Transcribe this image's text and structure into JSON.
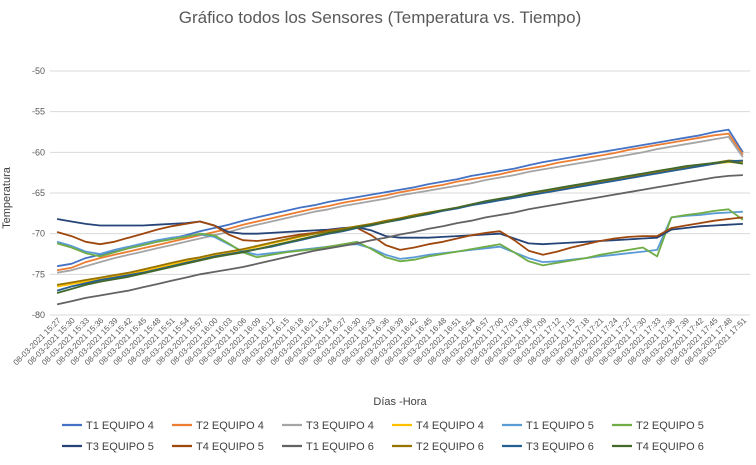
{
  "chart_data": {
    "type": "line",
    "title": "Gráfico todos los Sensores (Temperatura vs. Tiempo)",
    "xlabel": "Días -Hora",
    "ylabel": "Temperatura",
    "ylim": [
      -80,
      -50
    ],
    "yticks": [
      -50,
      -55,
      -60,
      -65,
      -70,
      -75,
      -80
    ],
    "grid": true,
    "legend_position": "bottom",
    "categories": [
      "08-03-2021 15:27",
      "08-03-2021 15:30",
      "08-03-2021 15:33",
      "08-03-2021 15:36",
      "08-03-2021 15:39",
      "08-03-2021 15:42",
      "08-03-2021 15:45",
      "08-03-2021 15:48",
      "08-03-2021 15:51",
      "08-03-2021 15:54",
      "08-03-2021 15:57",
      "08-03-2021 16:00",
      "08-03-2021 16:03",
      "08-03-2021 16:06",
      "08-03-2021 16:09",
      "08-03-2021 16:12",
      "08-03-2021 16:15",
      "08-03-2021 16:18",
      "08-03-2021 16:21",
      "08-03-2021 16:24",
      "08-03-2021 16:27",
      "08-03-2021 16:30",
      "08-03-2021 16:33",
      "08-03-2021 16:36",
      "08-03-2021 16:39",
      "08-03-2021 16:42",
      "08-03-2021 16:45",
      "08-03-2021 16:48",
      "08-03-2021 16:51",
      "08-03-2021 16:54",
      "08-03-2021 16:57",
      "08-03-2021 17:00",
      "08-03-2021 17:03",
      "08-03-2021 17:06",
      "08-03-2021 17:09",
      "08-03-2021 17:12",
      "08-03-2021 17:15",
      "08-03-2021 17:18",
      "08-03-2021 17:21",
      "08-03-2021 17:24",
      "08-03-2021 17:27",
      "08-03-2021 17:30",
      "08-03-2021 17:33",
      "08-03-2021 17:36",
      "08-03-2021 17:39",
      "08-03-2021 17:42",
      "08-03-2021 17:45",
      "08-03-2021 17:48",
      "08-03-2021 17:51"
    ],
    "series": [
      {
        "name": "T1 EQUIPO 4",
        "color": "#4472c4",
        "values": [
          -74,
          -73.7,
          -73,
          -72.6,
          -72.2,
          -71.8,
          -71.4,
          -71,
          -70.6,
          -70.2,
          -69.7,
          -69.3,
          -68.9,
          -68.4,
          -68,
          -67.6,
          -67.2,
          -66.8,
          -66.5,
          -66.1,
          -65.8,
          -65.5,
          -65.2,
          -64.9,
          -64.6,
          -64.3,
          -63.9,
          -63.6,
          -63.3,
          -62.9,
          -62.6,
          -62.3,
          -62,
          -61.6,
          -61.2,
          -60.9,
          -60.6,
          -60.3,
          -60,
          -59.7,
          -59.4,
          -59.1,
          -58.8,
          -58.5,
          -58.2,
          -57.9,
          -57.5,
          -57.2,
          -60
        ]
      },
      {
        "name": "T2 EQUIPO 4",
        "color": "#ed7d31",
        "values": [
          -74.5,
          -74.2,
          -73.5,
          -73,
          -72.6,
          -72.2,
          -71.8,
          -71.4,
          -71,
          -70.6,
          -70.2,
          -69.8,
          -69.4,
          -68.9,
          -68.5,
          -68.1,
          -67.7,
          -67.3,
          -66.9,
          -66.6,
          -66.2,
          -65.9,
          -65.6,
          -65.3,
          -64.9,
          -64.6,
          -64.3,
          -64,
          -63.6,
          -63.3,
          -63,
          -62.7,
          -62.3,
          -62,
          -61.7,
          -61.3,
          -61,
          -60.7,
          -60.4,
          -60.1,
          -59.7,
          -59.4,
          -59.1,
          -58.8,
          -58.5,
          -58.2,
          -57.9,
          -57.7,
          -60.3
        ]
      },
      {
        "name": "T3 EQUIPO 4",
        "color": "#a5a5a5",
        "values": [
          -74.8,
          -74.5,
          -74,
          -73.5,
          -73,
          -72.6,
          -72.2,
          -71.8,
          -71.4,
          -71,
          -70.6,
          -70.2,
          -69.8,
          -69.3,
          -68.9,
          -68.5,
          -68.1,
          -67.7,
          -67.3,
          -67,
          -66.6,
          -66.3,
          -66,
          -65.7,
          -65.3,
          -65,
          -64.7,
          -64.4,
          -64.1,
          -63.8,
          -63.4,
          -63.1,
          -62.8,
          -62.4,
          -62.1,
          -61.8,
          -61.5,
          -61.2,
          -60.9,
          -60.6,
          -60.3,
          -60,
          -59.6,
          -59.3,
          -59,
          -58.7,
          -58.4,
          -58.1,
          -60.6
        ]
      },
      {
        "name": "T4 EQUIPO 4",
        "color": "#ffc000",
        "values": [
          -76.5,
          -76.2,
          -75.9,
          -75.6,
          -75.3,
          -75,
          -74.6,
          -74.2,
          -73.8,
          -73.4,
          -73,
          -72.6,
          -72.3,
          -72,
          -71.6,
          -71.2,
          -70.8,
          -70.4,
          -70,
          -69.7,
          -69.4,
          -69.1,
          -68.8,
          -68.5,
          -68.1,
          -67.8,
          -67.4,
          -67.1,
          -66.8,
          -66.5,
          -66.1,
          -65.8,
          -65.5,
          -65.2,
          -64.9,
          -64.6,
          -64.3,
          -64,
          -63.7,
          -63.4,
          -63.1,
          -62.8,
          -62.5,
          -62.2,
          -61.9,
          -61.6,
          -61.4,
          -61.2,
          -61.3
        ]
      },
      {
        "name": "T1 EQUIPO 5",
        "color": "#5b9bd5",
        "values": [
          -71,
          -71.5,
          -72.2,
          -72.5,
          -72,
          -71.6,
          -71.2,
          -70.8,
          -70.5,
          -70.3,
          -70.1,
          -70.4,
          -71.3,
          -72.2,
          -72.6,
          -72.4,
          -72.2,
          -72,
          -71.8,
          -71.6,
          -71.4,
          -71.3,
          -71.8,
          -72.6,
          -73.1,
          -72.9,
          -72.6,
          -72.4,
          -72.2,
          -72,
          -71.8,
          -71.6,
          -72.3,
          -73,
          -73.5,
          -73.4,
          -73.2,
          -73,
          -72.8,
          -72.6,
          -72.4,
          -72.2,
          -72,
          -68,
          -67.8,
          -67.7,
          -67.5,
          -67.4,
          -67.3
        ]
      },
      {
        "name": "T2 EQUIPO 5",
        "color": "#70ad47",
        "values": [
          -71.2,
          -71.7,
          -72.4,
          -72.8,
          -72.3,
          -71.8,
          -71.4,
          -71,
          -70.7,
          -70.4,
          -70,
          -70.2,
          -71.2,
          -72.3,
          -72.9,
          -72.6,
          -72.3,
          -72.1,
          -71.9,
          -71.6,
          -71.3,
          -71,
          -71.9,
          -72.9,
          -73.4,
          -73.2,
          -72.8,
          -72.5,
          -72.2,
          -71.9,
          -71.6,
          -71.3,
          -72.3,
          -73.4,
          -73.9,
          -73.6,
          -73.3,
          -73,
          -72.6,
          -72.3,
          -72,
          -71.7,
          -72.8,
          -68,
          -67.7,
          -67.5,
          -67.2,
          -67,
          -68.3
        ]
      },
      {
        "name": "T3 EQUIPO 5",
        "color": "#264478",
        "values": [
          -68.2,
          -68.5,
          -68.8,
          -69,
          -69,
          -69,
          -69,
          -68.9,
          -68.8,
          -68.7,
          -68.5,
          -69,
          -69.8,
          -70,
          -70,
          -69.9,
          -69.8,
          -69.7,
          -69.6,
          -69.5,
          -69.3,
          -69.2,
          -69.6,
          -70.3,
          -70.5,
          -70.5,
          -70.5,
          -70.4,
          -70.3,
          -70.2,
          -70.1,
          -70,
          -70.6,
          -71.2,
          -71.3,
          -71.2,
          -71.1,
          -71,
          -70.9,
          -70.8,
          -70.7,
          -70.6,
          -70.5,
          -69.5,
          -69.3,
          -69.1,
          -69,
          -68.9,
          -68.8
        ]
      },
      {
        "name": "T4 EQUIPO 5",
        "color": "#9e480e",
        "values": [
          -69.8,
          -70.3,
          -71,
          -71.3,
          -71,
          -70.5,
          -70,
          -69.5,
          -69.1,
          -68.8,
          -68.5,
          -69,
          -70.1,
          -70.8,
          -70.9,
          -70.7,
          -70.4,
          -70.1,
          -69.9,
          -69.6,
          -69.4,
          -69.3,
          -70.2,
          -71.4,
          -72,
          -71.7,
          -71.3,
          -71,
          -70.6,
          -70.2,
          -69.9,
          -69.7,
          -70.8,
          -72.1,
          -72.6,
          -72.2,
          -71.7,
          -71.3,
          -70.9,
          -70.6,
          -70.4,
          -70.3,
          -70.3,
          -69.3,
          -69,
          -68.7,
          -68.4,
          -68.2,
          -68
        ]
      },
      {
        "name": "T1 EQUIPO 6",
        "color": "#636363",
        "values": [
          -78.7,
          -78.3,
          -77.9,
          -77.6,
          -77.3,
          -77,
          -76.6,
          -76.2,
          -75.8,
          -75.4,
          -75,
          -74.7,
          -74.4,
          -74.1,
          -73.7,
          -73.3,
          -72.9,
          -72.5,
          -72.1,
          -71.8,
          -71.5,
          -71.2,
          -70.8,
          -70.5,
          -70.1,
          -69.8,
          -69.4,
          -69.1,
          -68.7,
          -68.4,
          -68,
          -67.7,
          -67.4,
          -67,
          -66.7,
          -66.4,
          -66.1,
          -65.8,
          -65.5,
          -65.2,
          -64.9,
          -64.6,
          -64.3,
          -64,
          -63.7,
          -63.4,
          -63.1,
          -62.9,
          -62.8
        ]
      },
      {
        "name": "T2 EQUIPO 6",
        "color": "#997300",
        "values": [
          -76.3,
          -76,
          -75.7,
          -75.4,
          -75.1,
          -74.8,
          -74.4,
          -74,
          -73.6,
          -73.2,
          -72.9,
          -72.5,
          -72.2,
          -71.9,
          -71.5,
          -71.1,
          -70.7,
          -70.3,
          -70,
          -69.7,
          -69.4,
          -69.1,
          -68.8,
          -68.4,
          -68.1,
          -67.7,
          -67.4,
          -67.1,
          -66.8,
          -66.4,
          -66.1,
          -65.8,
          -65.5,
          -65.2,
          -64.9,
          -64.6,
          -64.3,
          -64,
          -63.7,
          -63.4,
          -63.1,
          -62.8,
          -62.5,
          -62.2,
          -61.9,
          -61.6,
          -61.3,
          -61,
          -61.1
        ]
      },
      {
        "name": "T3 EQUIPO 6",
        "color": "#255e91",
        "values": [
          -77,
          -76.5,
          -76.1,
          -75.7,
          -75.4,
          -75.1,
          -74.8,
          -74.4,
          -74,
          -73.6,
          -73.2,
          -72.8,
          -72.5,
          -72.2,
          -71.9,
          -71.6,
          -71.2,
          -70.8,
          -70.4,
          -70,
          -69.7,
          -69.3,
          -69,
          -68.6,
          -68.3,
          -67.9,
          -67.6,
          -67.2,
          -66.9,
          -66.5,
          -66.2,
          -65.9,
          -65.6,
          -65.3,
          -65,
          -64.7,
          -64.4,
          -64.1,
          -63.8,
          -63.5,
          -63.2,
          -62.9,
          -62.6,
          -62.3,
          -62,
          -61.7,
          -61.4,
          -61.1,
          -61
        ]
      },
      {
        "name": "T4 EQUIPO 6",
        "color": "#43682b",
        "values": [
          -77.3,
          -76.8,
          -76.3,
          -75.9,
          -75.6,
          -75.3,
          -74.9,
          -74.5,
          -74.1,
          -73.7,
          -73.3,
          -72.9,
          -72.6,
          -72.3,
          -71.9,
          -71.5,
          -71.1,
          -70.7,
          -70.3,
          -69.9,
          -69.6,
          -69.2,
          -68.9,
          -68.6,
          -68.2,
          -67.9,
          -67.5,
          -67.1,
          -66.8,
          -66.4,
          -66,
          -65.7,
          -65.4,
          -65,
          -64.7,
          -64.4,
          -64.1,
          -63.8,
          -63.5,
          -63.2,
          -62.9,
          -62.6,
          -62.3,
          -62,
          -61.7,
          -61.5,
          -61.3,
          -61.1,
          -61.4
        ]
      }
    ]
  }
}
